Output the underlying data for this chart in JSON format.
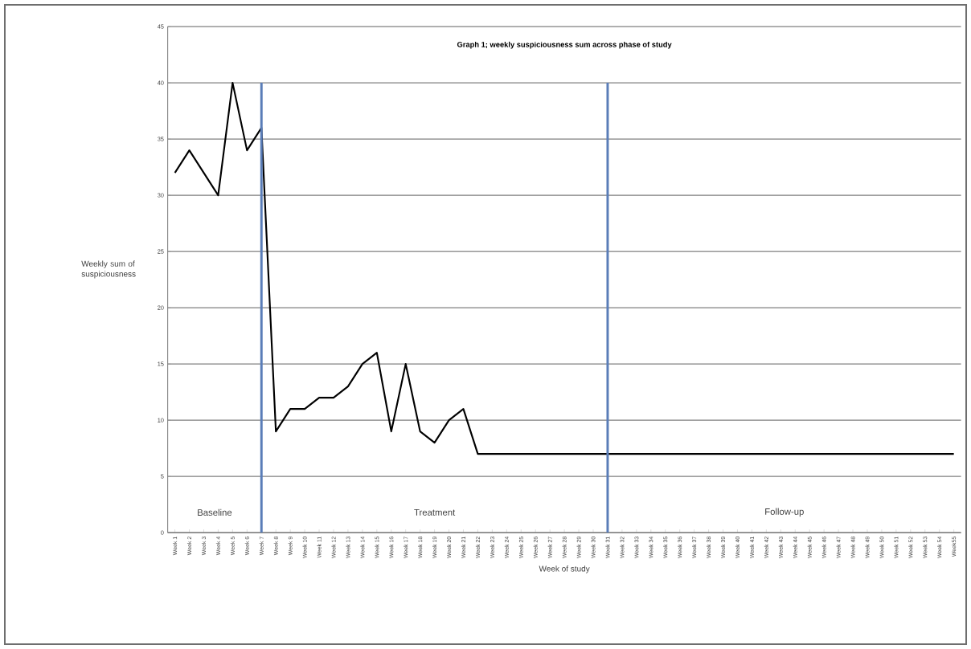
{
  "chart_data": {
    "type": "line",
    "title": "Graph 1; weekly suspiciousness sum across phase of study",
    "xlabel": "Week of study",
    "ylabel": "Weekly sum of suspiciousness",
    "categories": [
      "Week 1",
      "Week 2",
      "Week 3",
      "Week 4",
      "Week 5",
      "Week 6",
      "Week 7",
      "Week 8",
      "Week 9",
      "Week 10",
      "Week 11",
      "Week 12",
      "Week 13",
      "Week 14",
      "Week 15",
      "Week 16",
      "Week 17",
      "Week 18",
      "Week 19",
      "Week 20",
      "Week 21",
      "Week 22",
      "Week 23",
      "Week 24",
      "Week 25",
      "Week 26",
      "Week 27",
      "Week 28",
      "Week 29",
      "Week 30",
      "Week 31",
      "Week 32",
      "Week 33",
      "Week 34",
      "Week 35",
      "Week 36",
      "Week 37",
      "Week 38",
      "Week 39",
      "Week 40",
      "Week 41",
      "Week 42",
      "Week 43",
      "Week 44",
      "Week 45",
      "Week 46",
      "Week 47",
      "Week 48",
      "Week 49",
      "Week 50",
      "Week 51",
      "Week 52",
      "Week 53",
      "Week 54",
      "Week55"
    ],
    "series": [
      {
        "color": "#000000",
        "values": [
          32,
          34,
          32,
          30,
          40,
          34,
          36,
          9,
          11,
          11,
          12,
          12,
          13,
          15,
          16,
          9,
          15,
          9,
          8,
          10,
          11,
          7,
          7,
          7,
          7,
          7,
          7,
          7,
          7,
          7,
          7,
          7,
          7,
          7,
          7,
          7,
          7,
          7,
          7,
          7,
          7,
          7,
          7,
          7,
          7,
          7,
          7,
          7,
          7,
          7,
          7,
          7,
          7,
          7,
          7
        ]
      }
    ],
    "ylim": [
      0,
      45
    ],
    "yticks": [
      0,
      5,
      10,
      15,
      20,
      25,
      30,
      35,
      40,
      45
    ],
    "grid": "y",
    "legend": false,
    "marker": "none",
    "line_style": "solid",
    "ref_lines": [
      {
        "axis": "x",
        "value": "Week 7",
        "color": "#5a7db8"
      },
      {
        "axis": "x",
        "value": "Week 31",
        "color": "#5a7db8"
      }
    ],
    "annotations": [
      "Baseline",
      "Treatment",
      "Follow-up"
    ]
  }
}
